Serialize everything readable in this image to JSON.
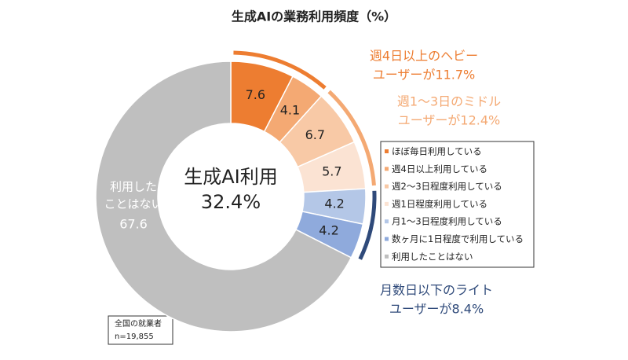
{
  "chart_data": {
    "type": "donut",
    "title": "生成AIの業務利用頻度（%）",
    "categories": [
      "ほぼ毎日利用している",
      "週4日以上利用している",
      "週2～3日程度利用している",
      "週1日程度利用している",
      "月1～3日程度利用している",
      "数ヶ月に1日程度で利用している",
      "利用したことはない"
    ],
    "values": [
      7.6,
      4.1,
      6.7,
      5.7,
      4.2,
      4.2,
      67.6
    ],
    "colors": [
      "#ed7d31",
      "#f4a973",
      "#f8c9a6",
      "#fbe3d3",
      "#b4c7e7",
      "#8faadc",
      "#bfbfbf"
    ],
    "center_text": [
      "生成AI利用",
      "32.4%"
    ],
    "unused_label": [
      "利用した",
      "ことはない"
    ],
    "annotations": [
      {
        "lines": [
          "週4日以上のヘビー",
          "ユーザーが11.7%"
        ],
        "color": "#ed7d31"
      },
      {
        "lines": [
          "週1～3日のミドル",
          "ユーザーが12.4%"
        ],
        "color": "#f4a973"
      },
      {
        "lines": [
          "月数日以下のライト",
          "ユーザーが8.4%"
        ],
        "color": "#2f4a7a"
      }
    ],
    "note": [
      "全国の就業者",
      "n=19,855"
    ],
    "legend": "right"
  }
}
